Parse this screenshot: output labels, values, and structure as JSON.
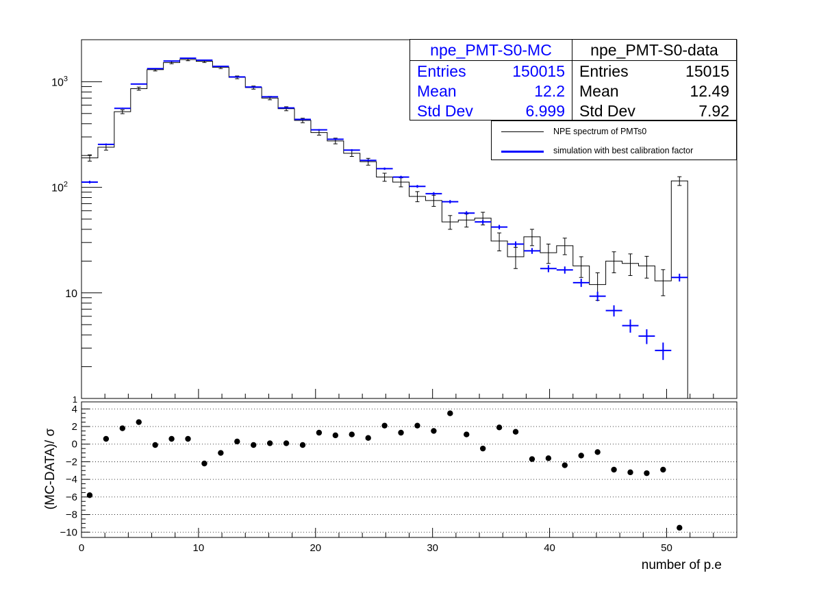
{
  "chart_data": [
    {
      "type": "histogram",
      "yscale": "log",
      "ylim": [
        1,
        2500
      ],
      "xlim": [
        0,
        56
      ],
      "grid": false,
      "y_tick_labels": [
        "1",
        "10",
        "10^2",
        "10^3"
      ],
      "legend_placement": "top-right",
      "colors": {
        "mc": "#0000ff",
        "data": "#000000"
      },
      "stat_boxes": [
        {
          "name": "npe_PMT-S0-MC",
          "color": "#0000ff",
          "rows": [
            {
              "label": "Entries",
              "value": "150015"
            },
            {
              "label": "Mean",
              "value": "12.2"
            },
            {
              "label": "Std Dev",
              "value": "6.999"
            }
          ]
        },
        {
          "name": "npe_PMT-S0-data",
          "color": "#000000",
          "rows": [
            {
              "label": "Entries",
              "value": "15015"
            },
            {
              "label": "Mean",
              "value": "12.49"
            },
            {
              "label": "Std Dev",
              "value": "7.92"
            }
          ]
        }
      ],
      "legend": [
        {
          "label": "NPE spectrum of PMTs0",
          "color": "#000000",
          "width": 1
        },
        {
          "label": "simulation with best calibration factor",
          "color": "#0000ff",
          "width": 2.5
        }
      ],
      "series": [
        {
          "name": "NPE spectrum of PMTs0",
          "style": "histogram",
          "x_edges": [
            0,
            1.4,
            2.8,
            4.2,
            5.6,
            7.0,
            8.4,
            9.8,
            11.2,
            12.6,
            14.0,
            15.4,
            16.8,
            18.2,
            19.6,
            21.0,
            22.4,
            23.8,
            25.2,
            26.6,
            28.0,
            29.4,
            30.8,
            32.2,
            33.6,
            35.0,
            36.4,
            37.8,
            39.2,
            40.6,
            42.0,
            43.4,
            44.8,
            46.2,
            47.6,
            49.0,
            50.4,
            51.8
          ],
          "values": [
            190,
            240,
            520,
            860,
            1300,
            1520,
            1620,
            1560,
            1370,
            1100,
            880,
            700,
            555,
            430,
            330,
            275,
            210,
            175,
            125,
            112,
            82,
            75,
            47,
            49,
            51,
            31,
            22,
            34,
            24,
            28,
            18,
            12,
            20,
            19,
            18,
            13,
            115
          ],
          "errors": [
            13,
            15,
            22,
            29,
            36,
            39,
            40,
            39,
            37,
            33,
            30,
            26,
            24,
            21,
            18,
            17,
            14,
            13,
            11,
            11,
            9,
            9,
            7,
            7,
            7,
            6,
            5,
            6,
            5,
            5,
            4,
            3.5,
            4.5,
            4.4,
            4.2,
            3.6,
            11
          ]
        },
        {
          "name": "simulation with best calibration factor",
          "style": "points",
          "x": [
            0.7,
            2.1,
            3.5,
            4.9,
            6.3,
            7.7,
            9.1,
            10.5,
            11.9,
            13.3,
            14.7,
            16.1,
            17.5,
            18.9,
            20.3,
            21.7,
            23.1,
            24.5,
            25.9,
            27.3,
            28.7,
            30.1,
            31.5,
            32.9,
            34.3,
            35.7,
            37.1,
            38.5,
            39.9,
            41.3,
            42.7,
            44.1,
            45.5,
            46.9,
            48.3,
            49.7,
            51.1
          ],
          "values": [
            112,
            255,
            560,
            950,
            1330,
            1570,
            1670,
            1600,
            1400,
            1110,
            890,
            720,
            565,
            440,
            350,
            285,
            225,
            180,
            150,
            125,
            102,
            87,
            73,
            57,
            47,
            42,
            29,
            25,
            17,
            16.5,
            12.5,
            9.3,
            6.8,
            4.9,
            3.9,
            2.85,
            14
          ]
        }
      ]
    },
    {
      "type": "scatter",
      "ylabel": "(MC-DATA)/ σ",
      "xlabel": "number of p.e",
      "xlim": [
        0,
        56
      ],
      "ylim": [
        -10.6,
        4.8
      ],
      "y_ticks": [
        4,
        2,
        0,
        -2,
        -4,
        -6,
        -8,
        -10
      ],
      "y_tick_labels": [
        "4",
        "2",
        "0",
        "−2",
        "−4",
        "−6",
        "−8",
        "−10"
      ],
      "x_ticks": [
        0,
        10,
        20,
        30,
        40,
        50
      ],
      "x_tick_labels": [
        "0",
        "10",
        "20",
        "30",
        "40",
        "50"
      ],
      "grid": true,
      "series": [
        {
          "name": "",
          "color": "#000000",
          "x": [
            0.7,
            2.1,
            3.5,
            4.9,
            6.3,
            7.7,
            9.1,
            10.5,
            11.9,
            13.3,
            14.7,
            16.1,
            17.5,
            18.9,
            20.3,
            21.7,
            23.1,
            24.5,
            25.9,
            27.3,
            28.7,
            30.1,
            31.5,
            32.9,
            34.3,
            35.7,
            37.1,
            38.5,
            39.9,
            41.3,
            42.7,
            44.1,
            45.5,
            46.9,
            48.3,
            49.7,
            51.1
          ],
          "values": [
            -5.8,
            0.6,
            1.8,
            2.5,
            -0.1,
            0.6,
            0.6,
            -2.2,
            -1.0,
            0.3,
            -0.1,
            0.1,
            0.1,
            -0.1,
            1.3,
            1.0,
            1.1,
            0.7,
            2.1,
            1.3,
            2.1,
            1.5,
            3.5,
            1.1,
            -0.5,
            1.9,
            1.4,
            -1.7,
            -1.6,
            -2.4,
            -1.3,
            -0.9,
            -2.9,
            -3.2,
            -3.3,
            -2.9,
            -9.5
          ]
        }
      ]
    }
  ]
}
